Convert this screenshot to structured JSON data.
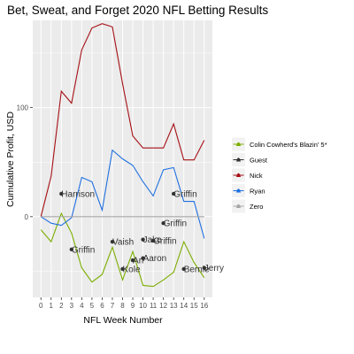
{
  "chart_data": {
    "type": "line",
    "title": "Bet, Sweat, and Forget 2020 NFL Betting Results",
    "xlabel": "NFL Week Number",
    "ylabel": "Cumulative Profit, USD",
    "xlim": [
      -0.8,
      16.8
    ],
    "ylim": [
      -74,
      180
    ],
    "x_ticks": [
      "0",
      "1",
      "2",
      "3",
      "4",
      "5",
      "6",
      "7",
      "8",
      "9",
      "10",
      "11",
      "12",
      "13",
      "14",
      "15",
      "16"
    ],
    "y_ticks": [
      {
        "value": 0,
        "label": "0"
      },
      {
        "value": 100,
        "label": "100"
      }
    ],
    "grid": true,
    "legend_position": "right",
    "series": [
      {
        "name": "Colin Cowherd's Blazin' 5*",
        "color": "#7CAE00",
        "x": [
          0,
          1,
          2,
          3,
          4,
          5,
          6,
          7,
          8,
          9,
          10,
          11,
          12,
          13,
          14,
          15,
          16
        ],
        "y": [
          -12,
          -23,
          3,
          -15,
          -47,
          -60,
          -53,
          -28,
          -58,
          -32,
          -63,
          -64,
          -58,
          -51,
          -23,
          -42,
          -56
        ]
      },
      {
        "name": "Nick",
        "color": "#A50F15",
        "x": [
          0,
          1,
          2,
          3,
          4,
          5,
          6,
          7,
          8,
          9,
          10,
          11,
          12,
          13,
          14,
          15,
          16
        ],
        "y": [
          0,
          37,
          115,
          104,
          153,
          173,
          177,
          174,
          122,
          74,
          63,
          63,
          63,
          85,
          52,
          52,
          70
        ]
      },
      {
        "name": "Ryan",
        "color": "#1F6FE0",
        "x": [
          0,
          1,
          2,
          3,
          4,
          5,
          6,
          7,
          8,
          9,
          10,
          11,
          12,
          13,
          14,
          15,
          16
        ],
        "y": [
          0,
          -6,
          -8,
          -1,
          36,
          32,
          6,
          61,
          53,
          47,
          32,
          19,
          43,
          45,
          14,
          14,
          -20
        ]
      },
      {
        "name": "Zero",
        "color": "#A6A6A6",
        "x": [
          0,
          16
        ],
        "y": [
          0,
          0
        ]
      }
    ],
    "guest_series": {
      "name": "Guest",
      "color": "#333333"
    },
    "guest_points": [
      {
        "x": 2,
        "y": 21,
        "label": "Harrison"
      },
      {
        "x": 3,
        "y": -30,
        "label": "Griffin"
      },
      {
        "x": 7,
        "y": -23,
        "label": "Vaish"
      },
      {
        "x": 8,
        "y": -48,
        "label": "Kole"
      },
      {
        "x": 9,
        "y": -40,
        "label": "Ari"
      },
      {
        "x": 10,
        "y": -38,
        "label": "Aaron"
      },
      {
        "x": 10,
        "y": -21,
        "label": "Jake"
      },
      {
        "x": 11,
        "y": -22,
        "label": "Griffin"
      },
      {
        "x": 12,
        "y": -6,
        "label": "Griffin"
      },
      {
        "x": 13,
        "y": 21,
        "label": "Griffin"
      },
      {
        "x": 14,
        "y": -48,
        "label": "Bernie"
      },
      {
        "x": 16,
        "y": -47,
        "label": "Jerry"
      }
    ]
  }
}
